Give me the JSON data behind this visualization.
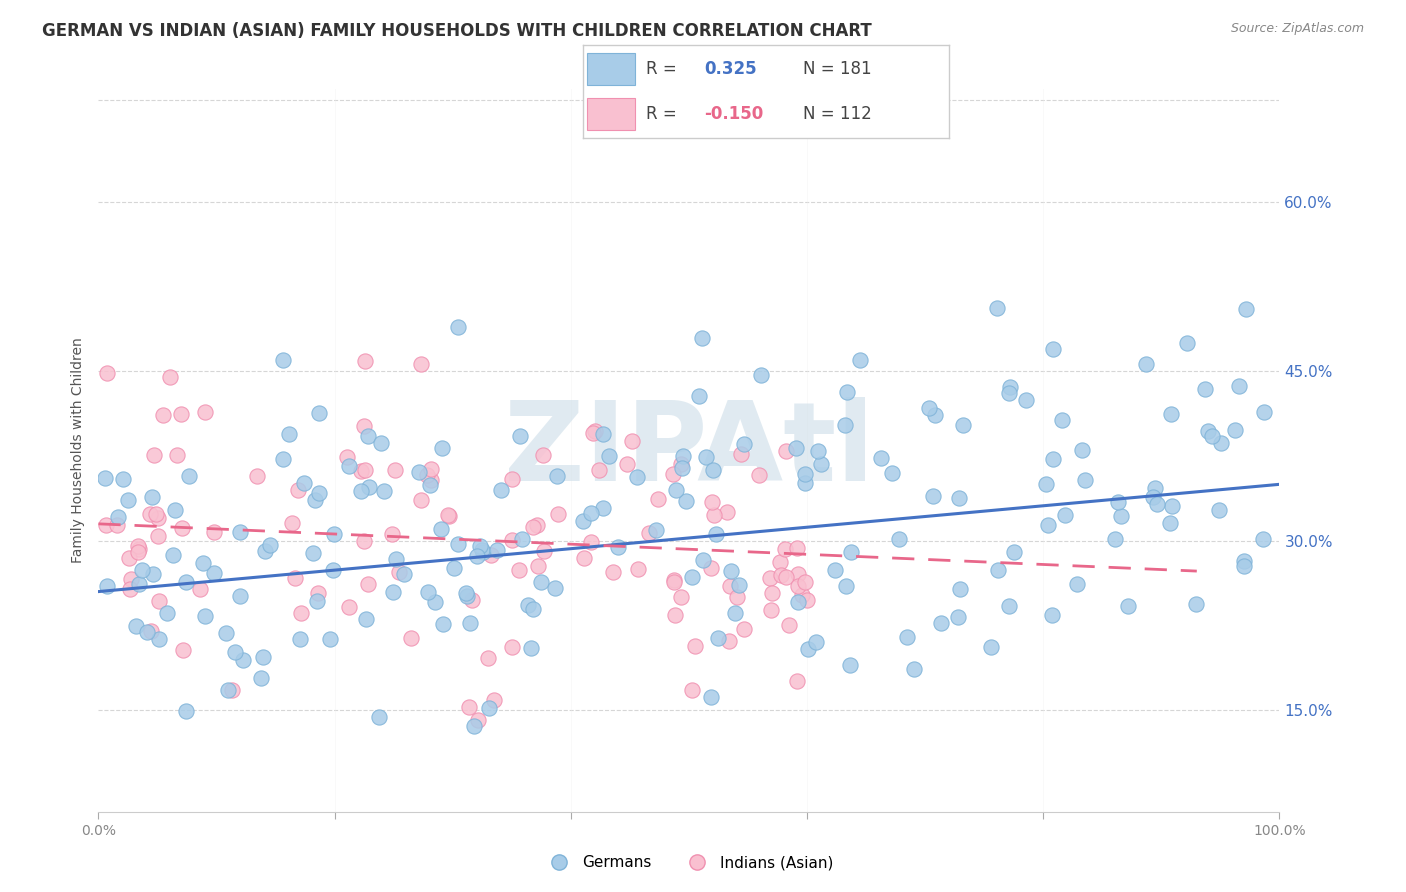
{
  "title": "GERMAN VS INDIAN (ASIAN) FAMILY HOUSEHOLDS WITH CHILDREN CORRELATION CHART",
  "source": "Source: ZipAtlas.com",
  "ylabel": "Family Households with Children",
  "ytick_labels": [
    "15.0%",
    "30.0%",
    "45.0%",
    "60.0%"
  ],
  "ytick_values": [
    0.15,
    0.3,
    0.45,
    0.6
  ],
  "xlim": [
    0.0,
    1.0
  ],
  "ylim": [
    0.06,
    0.7
  ],
  "german_R": "0.325",
  "german_N": "181",
  "indian_R": "-0.150",
  "indian_N": "112",
  "german_color": "#a8cce8",
  "german_edge_color": "#7fb3d8",
  "indian_color": "#f9c0d0",
  "indian_edge_color": "#f090b0",
  "german_line_color": "#4472c4",
  "indian_line_color": "#e8678a",
  "watermark": "ZIPAtl",
  "watermark_color": "#ccdde8",
  "legend_label_german": "Germans",
  "legend_label_indian": "Indians (Asian)",
  "background_color": "#ffffff",
  "grid_color": "#cccccc",
  "ytick_color": "#4472c4",
  "title_color": "#333333",
  "title_fontsize": 12,
  "axis_label_fontsize": 10,
  "tick_fontsize": 10,
  "seed": 42,
  "german_slope": 0.095,
  "german_intercept": 0.255,
  "indian_slope": -0.045,
  "indian_intercept": 0.315,
  "german_line_x0": 0.0,
  "german_line_x1": 1.0,
  "indian_line_x0": 0.0,
  "indian_line_x1": 0.93
}
